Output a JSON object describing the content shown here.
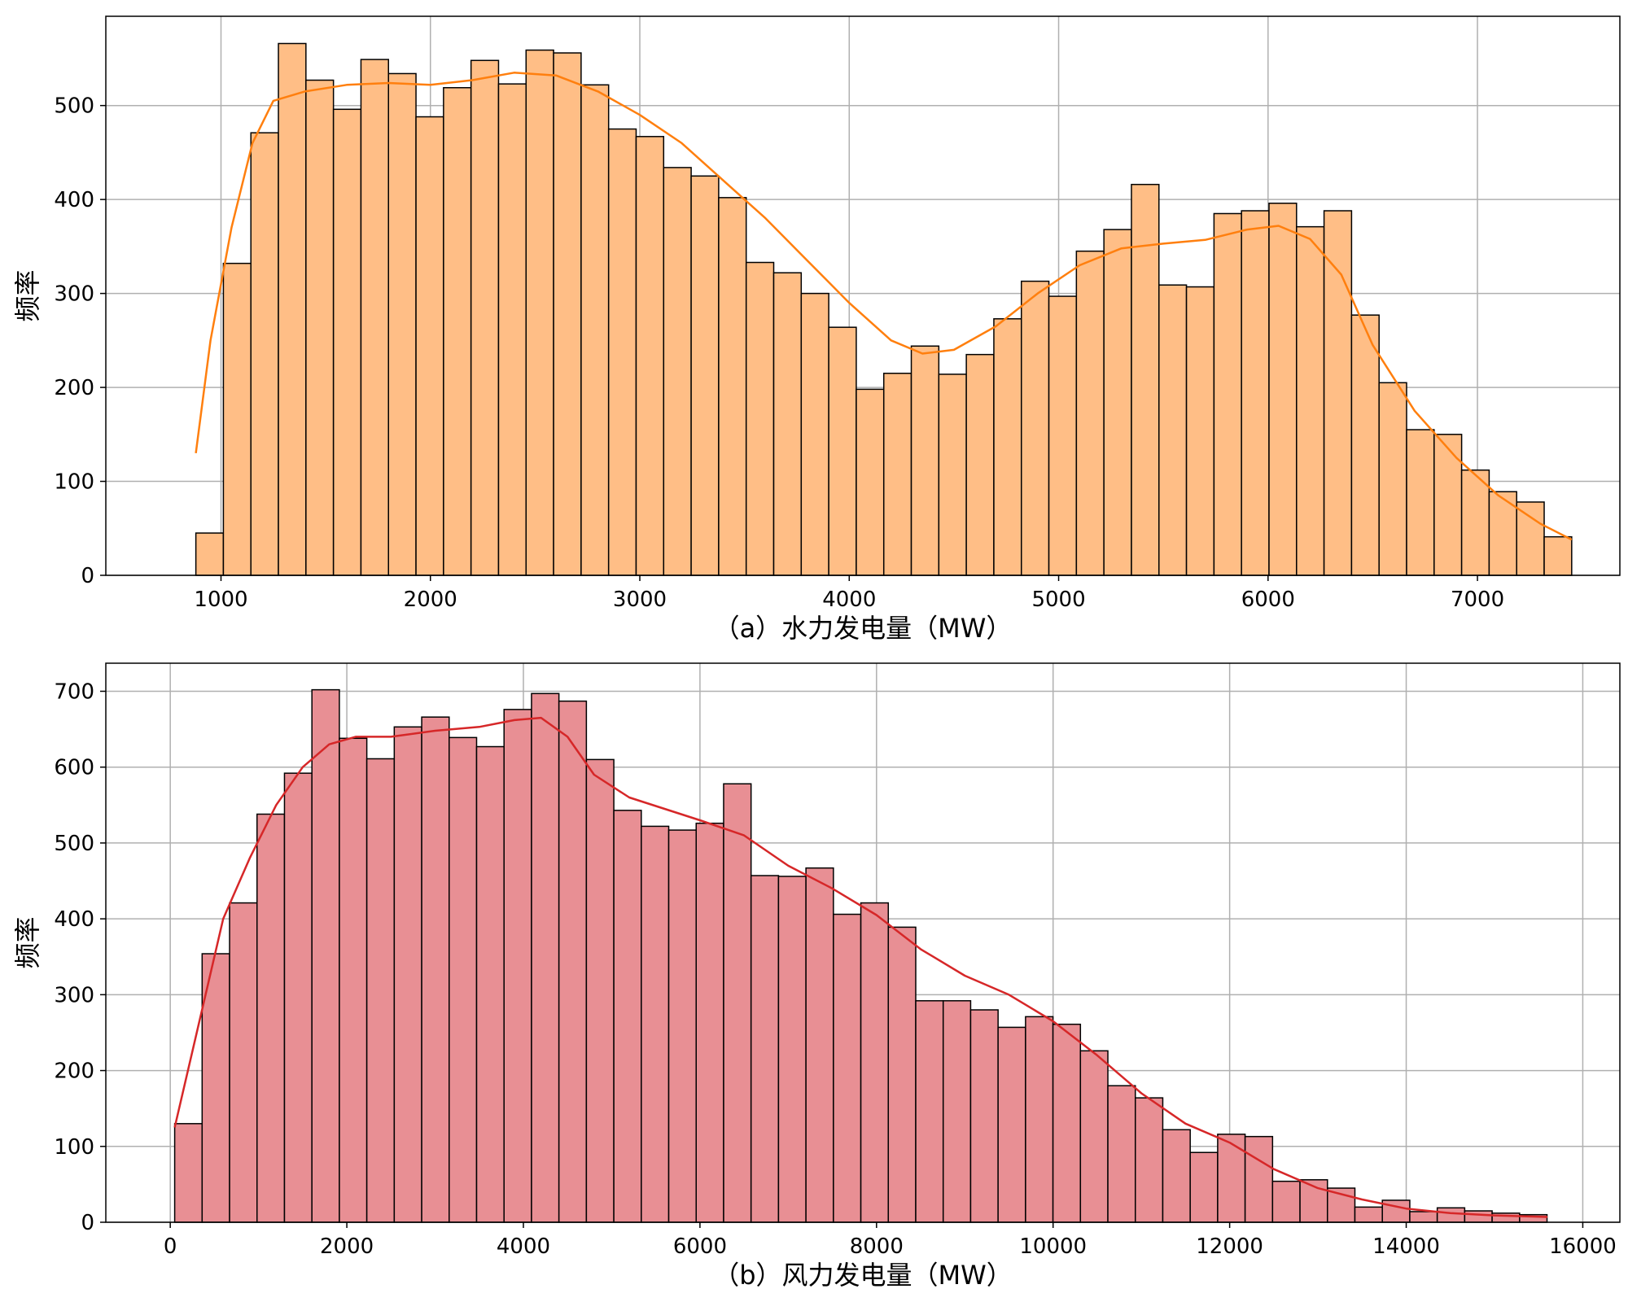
{
  "chart_data": [
    {
      "type": "bar",
      "xlabel": "（a）水力发电量（MW）",
      "ylabel": "频率",
      "bin_start": 880,
      "bin_width": 131.4,
      "values": [
        45,
        332,
        471,
        566,
        527,
        496,
        549,
        534,
        488,
        519,
        548,
        523,
        559,
        556,
        522,
        475,
        467,
        434,
        425,
        402,
        333,
        322,
        300,
        264,
        198,
        215,
        244,
        214,
        235,
        273,
        313,
        297,
        345,
        368,
        416,
        309,
        307,
        385,
        388,
        396,
        371,
        388,
        277,
        205,
        155,
        150,
        112,
        89,
        78,
        41
      ],
      "kde": [
        [
          880,
          130
        ],
        [
          950,
          250
        ],
        [
          1050,
          370
        ],
        [
          1150,
          460
        ],
        [
          1250,
          505
        ],
        [
          1400,
          515
        ],
        [
          1600,
          522
        ],
        [
          1800,
          524
        ],
        [
          2000,
          522
        ],
        [
          2200,
          527
        ],
        [
          2400,
          535
        ],
        [
          2600,
          532
        ],
        [
          2800,
          515
        ],
        [
          3000,
          490
        ],
        [
          3200,
          460
        ],
        [
          3400,
          420
        ],
        [
          3600,
          380
        ],
        [
          3800,
          335
        ],
        [
          4000,
          290
        ],
        [
          4200,
          250
        ],
        [
          4350,
          236
        ],
        [
          4500,
          240
        ],
        [
          4700,
          265
        ],
        [
          4900,
          300
        ],
        [
          5100,
          330
        ],
        [
          5300,
          348
        ],
        [
          5500,
          353
        ],
        [
          5700,
          357
        ],
        [
          5900,
          368
        ],
        [
          6050,
          372
        ],
        [
          6200,
          358
        ],
        [
          6350,
          320
        ],
        [
          6500,
          245
        ],
        [
          6700,
          175
        ],
        [
          6900,
          125
        ],
        [
          7100,
          85
        ],
        [
          7300,
          55
        ],
        [
          7450,
          38
        ]
      ],
      "xticks": [
        1000,
        2000,
        3000,
        4000,
        5000,
        6000,
        7000
      ],
      "yticks": [
        0,
        100,
        200,
        300,
        400,
        500
      ],
      "xlim": [
        450,
        7680
      ],
      "ylim": [
        0,
        595
      ],
      "grid": true,
      "colors": {
        "bar": "#ffbe86",
        "edge": "#000000",
        "line": "#ff7f0e"
      }
    },
    {
      "type": "bar",
      "xlabel": "（b）风力发电量（MW）",
      "ylabel": "频率",
      "bin_start": 50,
      "bin_width": 310.9,
      "values": [
        130,
        354,
        421,
        538,
        592,
        702,
        638,
        611,
        653,
        666,
        639,
        627,
        676,
        697,
        687,
        610,
        543,
        522,
        517,
        526,
        578,
        457,
        456,
        467,
        406,
        421,
        389,
        292,
        292,
        280,
        257,
        271,
        261,
        226,
        180,
        164,
        122,
        92,
        116,
        113,
        54,
        56,
        45,
        20,
        29,
        14,
        19,
        15,
        12,
        10
      ],
      "kde": [
        [
          50,
          125
        ],
        [
          300,
          250
        ],
        [
          600,
          400
        ],
        [
          900,
          480
        ],
        [
          1200,
          550
        ],
        [
          1500,
          600
        ],
        [
          1800,
          630
        ],
        [
          2100,
          640
        ],
        [
          2500,
          640
        ],
        [
          3000,
          648
        ],
        [
          3500,
          653
        ],
        [
          3900,
          662
        ],
        [
          4200,
          665
        ],
        [
          4500,
          640
        ],
        [
          4800,
          590
        ],
        [
          5200,
          560
        ],
        [
          5600,
          545
        ],
        [
          6000,
          530
        ],
        [
          6500,
          510
        ],
        [
          7000,
          470
        ],
        [
          7500,
          440
        ],
        [
          8000,
          405
        ],
        [
          8500,
          360
        ],
        [
          9000,
          325
        ],
        [
          9500,
          300
        ],
        [
          10000,
          265
        ],
        [
          10500,
          220
        ],
        [
          11000,
          170
        ],
        [
          11500,
          130
        ],
        [
          12000,
          105
        ],
        [
          12500,
          70
        ],
        [
          13000,
          45
        ],
        [
          13500,
          30
        ],
        [
          14000,
          18
        ],
        [
          14500,
          12
        ],
        [
          15000,
          9
        ],
        [
          15600,
          7
        ]
      ],
      "xticks": [
        0,
        2000,
        4000,
        6000,
        8000,
        10000,
        12000,
        14000,
        16000
      ],
      "yticks": [
        0,
        100,
        200,
        300,
        400,
        500,
        600,
        700
      ],
      "xlim": [
        -730,
        16420
      ],
      "ylim": [
        0,
        737
      ],
      "grid": true,
      "colors": {
        "bar": "#e88f94",
        "edge": "#000000",
        "line": "#d62728"
      }
    }
  ]
}
